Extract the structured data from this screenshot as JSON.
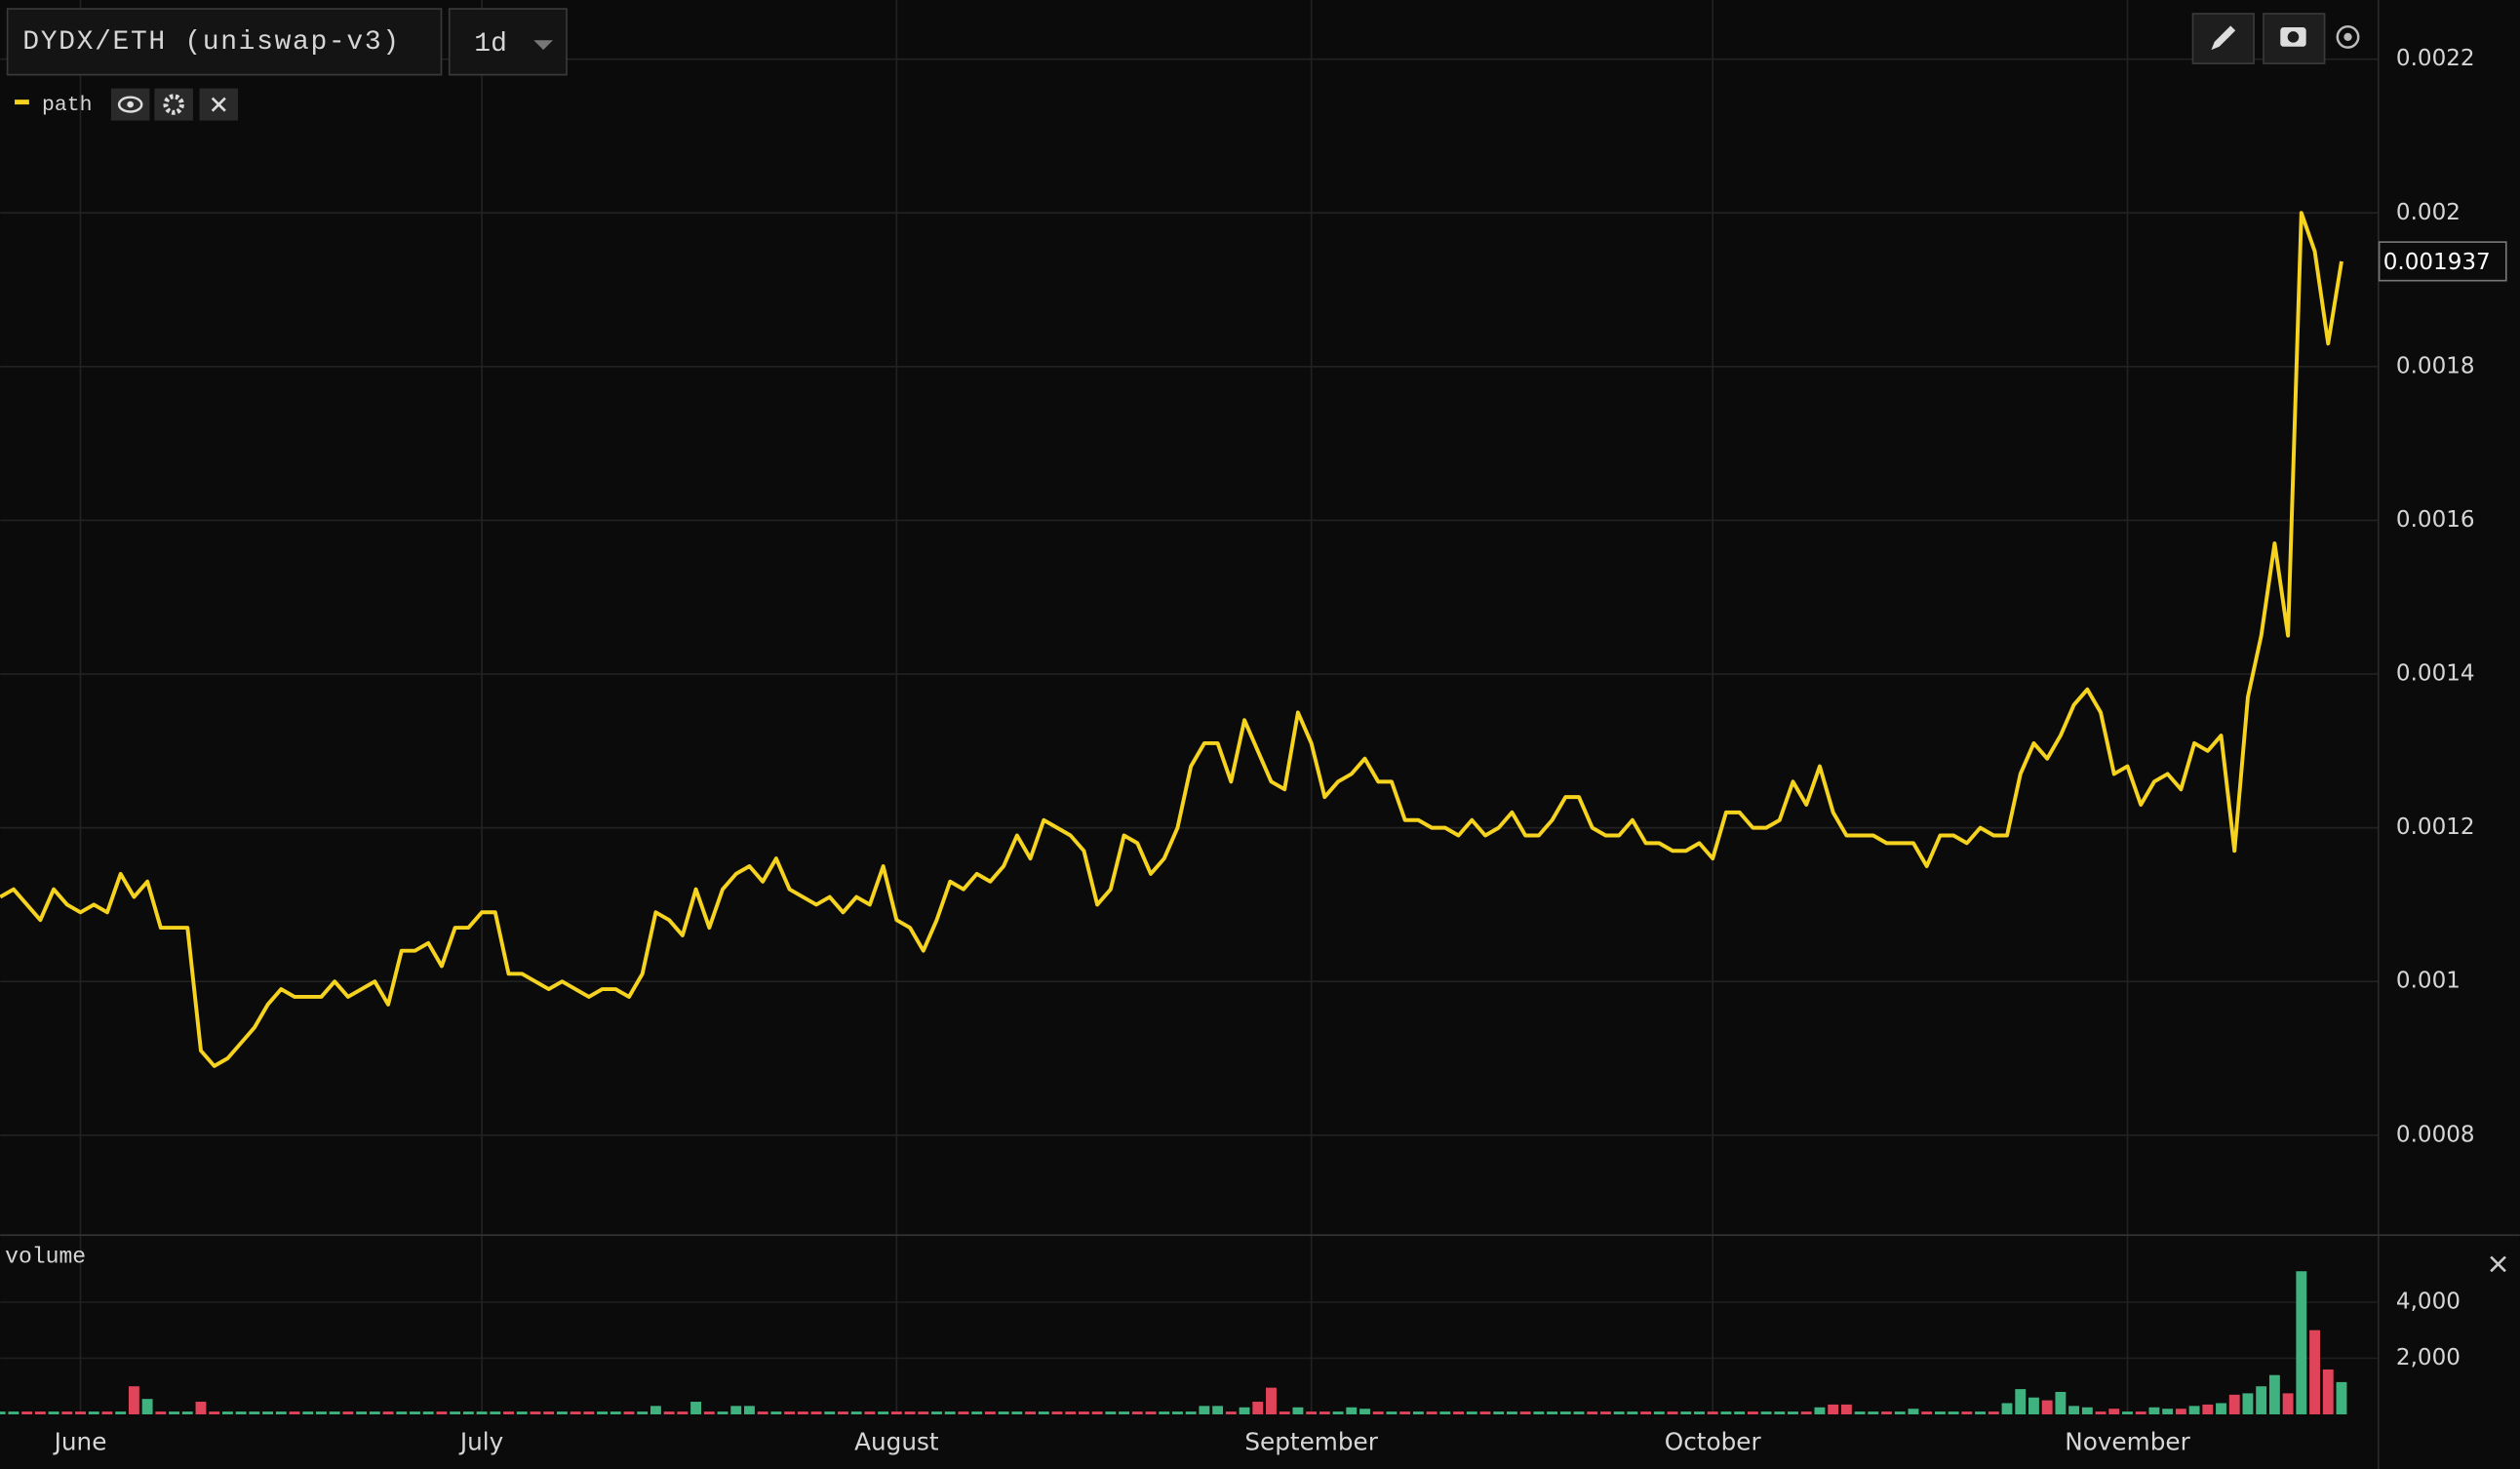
{
  "symbol_label": "DYDX/ETH (uniswap-v3)",
  "interval": "1d",
  "chart_data": [
    {
      "type": "line",
      "categories": [
        null,
        null,
        null,
        null,
        null,
        null,
        "June",
        null,
        null,
        null,
        null,
        null,
        null,
        null,
        null,
        null,
        null,
        null,
        null,
        null,
        null,
        null,
        null,
        null,
        null,
        null,
        null,
        null,
        null,
        null,
        null,
        null,
        null,
        null,
        null,
        null,
        "July",
        null,
        null,
        null,
        null,
        null,
        null,
        null,
        null,
        null,
        null,
        null,
        null,
        null,
        null,
        null,
        null,
        null,
        null,
        null,
        null,
        null,
        null,
        null,
        null,
        null,
        null,
        null,
        null,
        null,
        null,
        "August",
        null,
        null,
        null,
        null,
        null,
        null,
        null,
        null,
        null,
        null,
        null,
        null,
        null,
        null,
        null,
        null,
        null,
        null,
        null,
        null,
        null,
        null,
        null,
        null,
        null,
        null,
        null,
        null,
        null,
        null,
        "September",
        null,
        null,
        null,
        null,
        null,
        null,
        null,
        null,
        null,
        null,
        null,
        null,
        null,
        null,
        null,
        null,
        null,
        null,
        null,
        null,
        null,
        null,
        null,
        null,
        null,
        null,
        null,
        null,
        null,
        "October",
        null,
        null,
        null,
        null,
        null,
        null,
        null,
        null,
        null,
        null,
        null,
        null,
        null,
        null,
        null,
        null,
        null,
        null,
        null,
        null,
        null,
        null,
        null,
        null,
        null,
        null,
        null,
        null,
        null,
        null,
        "November",
        null,
        null,
        null,
        null,
        null,
        null,
        null,
        null,
        null,
        null,
        null,
        null,
        null,
        null,
        null,
        null
      ],
      "series": [
        {
          "name": "path",
          "color": "#f5d31e",
          "values": [
            0.00111,
            0.00112,
            0.0011,
            0.00108,
            0.00112,
            0.0011,
            0.00109,
            0.0011,
            0.00109,
            0.00114,
            0.00111,
            0.00113,
            0.00107,
            0.00107,
            0.00107,
            0.00091,
            0.00089,
            0.0009,
            0.00092,
            0.00094,
            0.00097,
            0.00099,
            0.00098,
            0.00098,
            0.00098,
            0.001,
            0.00098,
            0.00099,
            0.001,
            0.00097,
            0.00104,
            0.00104,
            0.00105,
            0.00102,
            0.00107,
            0.00107,
            0.00109,
            0.00109,
            0.00101,
            0.00101,
            0.001,
            0.00099,
            0.001,
            0.00099,
            0.00098,
            0.00099,
            0.00099,
            0.00098,
            0.00101,
            0.00109,
            0.00108,
            0.00106,
            0.00112,
            0.00107,
            0.00112,
            0.00114,
            0.00115,
            0.00113,
            0.00116,
            0.00112,
            0.00111,
            0.0011,
            0.00111,
            0.00109,
            0.00111,
            0.0011,
            0.00115,
            0.00108,
            0.00107,
            0.00104,
            0.00108,
            0.00113,
            0.00112,
            0.00114,
            0.00113,
            0.00115,
            0.00119,
            0.00116,
            0.00121,
            0.0012,
            0.00119,
            0.00117,
            0.0011,
            0.00112,
            0.00119,
            0.00118,
            0.00114,
            0.00116,
            0.0012,
            0.00128,
            0.00131,
            0.00131,
            0.00126,
            0.00134,
            0.0013,
            0.00126,
            0.00125,
            0.00135,
            0.00131,
            0.00124,
            0.00126,
            0.00127,
            0.00129,
            0.00126,
            0.00126,
            0.00121,
            0.00121,
            0.0012,
            0.0012,
            0.00119,
            0.00121,
            0.00119,
            0.0012,
            0.00122,
            0.00119,
            0.00119,
            0.00121,
            0.00124,
            0.00124,
            0.0012,
            0.00119,
            0.00119,
            0.00121,
            0.00118,
            0.00118,
            0.00117,
            0.00117,
            0.00118,
            0.00116,
            0.00122,
            0.00122,
            0.0012,
            0.0012,
            0.00121,
            0.00126,
            0.00123,
            0.00128,
            0.00122,
            0.00119,
            0.00119,
            0.00119,
            0.00118,
            0.00118,
            0.00118,
            0.00115,
            0.00119,
            0.00119,
            0.00118,
            0.0012,
            0.00119,
            0.00119,
            0.00127,
            0.00131,
            0.00129,
            0.00132,
            0.00136,
            0.00138,
            0.00135,
            0.00127,
            0.00128,
            0.00123,
            0.00126,
            0.00127,
            0.00125,
            0.00131,
            0.0013,
            0.00132,
            0.00117,
            0.00137,
            0.00145,
            0.00157,
            0.00145,
            0.002,
            0.00195,
            0.00183,
            0.001937
          ]
        }
      ],
      "ylim": [
        0.000671,
        0.002277
      ],
      "yticks": [
        0.0008,
        0.001,
        0.0012,
        0.0014,
        0.0016,
        0.0018,
        0.002,
        0.0022
      ],
      "grid": true
    },
    {
      "type": "bar",
      "title": "volume",
      "values": [
        100,
        100,
        100,
        100,
        100,
        100,
        100,
        100,
        100,
        100,
        1000,
        550,
        100,
        100,
        100,
        450,
        100,
        100,
        100,
        100,
        100,
        100,
        100,
        100,
        100,
        100,
        100,
        100,
        100,
        100,
        100,
        100,
        100,
        100,
        100,
        100,
        100,
        100,
        100,
        100,
        100,
        100,
        100,
        100,
        100,
        100,
        100,
        100,
        100,
        300,
        100,
        100,
        450,
        100,
        100,
        300,
        300,
        100,
        100,
        100,
        100,
        100,
        100,
        100,
        100,
        100,
        100,
        100,
        100,
        100,
        100,
        100,
        100,
        100,
        100,
        100,
        100,
        100,
        100,
        100,
        100,
        100,
        100,
        100,
        100,
        100,
        100,
        100,
        100,
        100,
        300,
        300,
        100,
        250,
        450,
        950,
        100,
        250,
        100,
        100,
        100,
        250,
        200,
        100,
        100,
        100,
        100,
        100,
        100,
        100,
        100,
        100,
        100,
        100,
        100,
        100,
        100,
        100,
        100,
        100,
        100,
        100,
        100,
        100,
        100,
        100,
        100,
        100,
        100,
        100,
        100,
        100,
        100,
        100,
        100,
        100,
        250,
        350,
        350,
        100,
        100,
        100,
        100,
        200,
        100,
        100,
        100,
        100,
        100,
        100,
        400,
        900,
        600,
        500,
        800,
        300,
        250,
        100,
        200,
        100,
        100,
        250,
        200,
        200,
        300,
        350,
        400,
        700,
        750,
        1000,
        1400,
        750,
        5100,
        3000,
        1600,
        1150
      ],
      "ylim": [
        0,
        6300
      ],
      "yticks": [
        {
          "value": 2000,
          "label": "2,000"
        },
        {
          "value": 4000,
          "label": "4,000"
        }
      ],
      "up_color": "#3fb27f",
      "down_color": "#e0445a"
    }
  ]
}
